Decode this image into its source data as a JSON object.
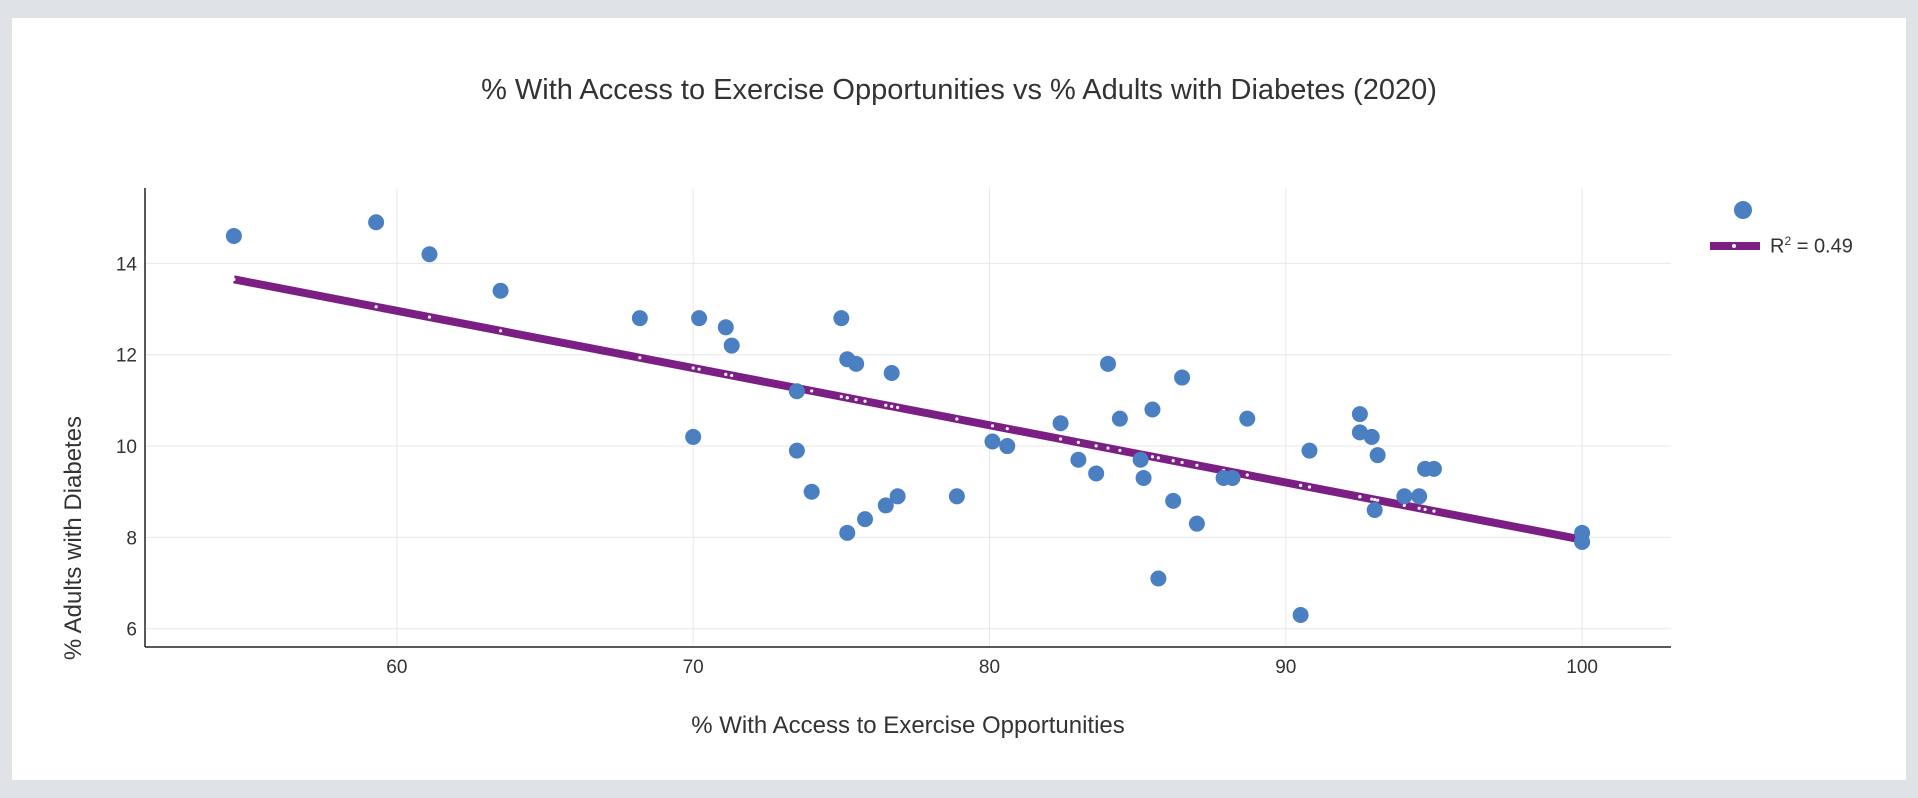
{
  "chart_data": {
    "type": "scatter",
    "title": "% With Access to Exercise Opportunities vs % Adults with Diabetes (2020)",
    "xlabel": "% With Access to Exercise Opportunities",
    "ylabel": "% Adults with Diabetes",
    "xlim": [
      51.5,
      103
    ],
    "ylim": [
      5.6,
      15.65
    ],
    "xticks": [
      60,
      70,
      80,
      90,
      100
    ],
    "yticks": [
      6,
      8,
      10,
      12,
      14
    ],
    "grid": true,
    "legend_position": "top-right",
    "colors": {
      "points": "#4a7fc1",
      "trendline": "#7b1f84"
    },
    "series": [
      {
        "type": "scatter",
        "points": [
          [
            54.5,
            14.6
          ],
          [
            59.3,
            14.9
          ],
          [
            61.1,
            14.2
          ],
          [
            63.5,
            13.4
          ],
          [
            68.2,
            12.8
          ],
          [
            70.2,
            12.8
          ],
          [
            71.1,
            12.6
          ],
          [
            71.3,
            12.2
          ],
          [
            70.0,
            10.2
          ],
          [
            73.5,
            11.2
          ],
          [
            73.5,
            9.9
          ],
          [
            74.0,
            9.0
          ],
          [
            75.0,
            12.8
          ],
          [
            75.2,
            11.9
          ],
          [
            75.5,
            11.8
          ],
          [
            76.7,
            11.6
          ],
          [
            75.2,
            8.1
          ],
          [
            75.8,
            8.4
          ],
          [
            76.5,
            8.7
          ],
          [
            76.9,
            8.9
          ],
          [
            78.9,
            8.9
          ],
          [
            80.1,
            10.1
          ],
          [
            80.6,
            10.0
          ],
          [
            82.4,
            10.5
          ],
          [
            83.0,
            9.7
          ],
          [
            83.6,
            9.4
          ],
          [
            84.0,
            11.8
          ],
          [
            84.4,
            10.6
          ],
          [
            85.1,
            9.7
          ],
          [
            85.2,
            9.3
          ],
          [
            85.5,
            10.8
          ],
          [
            85.7,
            7.1
          ],
          [
            86.2,
            8.8
          ],
          [
            86.5,
            11.5
          ],
          [
            87.0,
            8.3
          ],
          [
            87.9,
            9.3
          ],
          [
            88.2,
            9.3
          ],
          [
            88.7,
            10.6
          ],
          [
            90.5,
            6.3
          ],
          [
            90.8,
            9.9
          ],
          [
            92.5,
            10.7
          ],
          [
            92.5,
            10.3
          ],
          [
            92.9,
            10.2
          ],
          [
            93.0,
            8.6
          ],
          [
            93.1,
            9.8
          ],
          [
            94.0,
            8.9
          ],
          [
            94.5,
            8.9
          ],
          [
            94.7,
            9.5
          ],
          [
            95.0,
            9.5
          ],
          [
            100.0,
            8.1
          ],
          [
            100.0,
            7.9
          ]
        ]
      },
      {
        "type": "line",
        "name": "R² = 0.49",
        "r_squared": "0.49",
        "points": [
          [
            54.5,
            13.65
          ],
          [
            100.0,
            7.95
          ]
        ]
      }
    ]
  }
}
